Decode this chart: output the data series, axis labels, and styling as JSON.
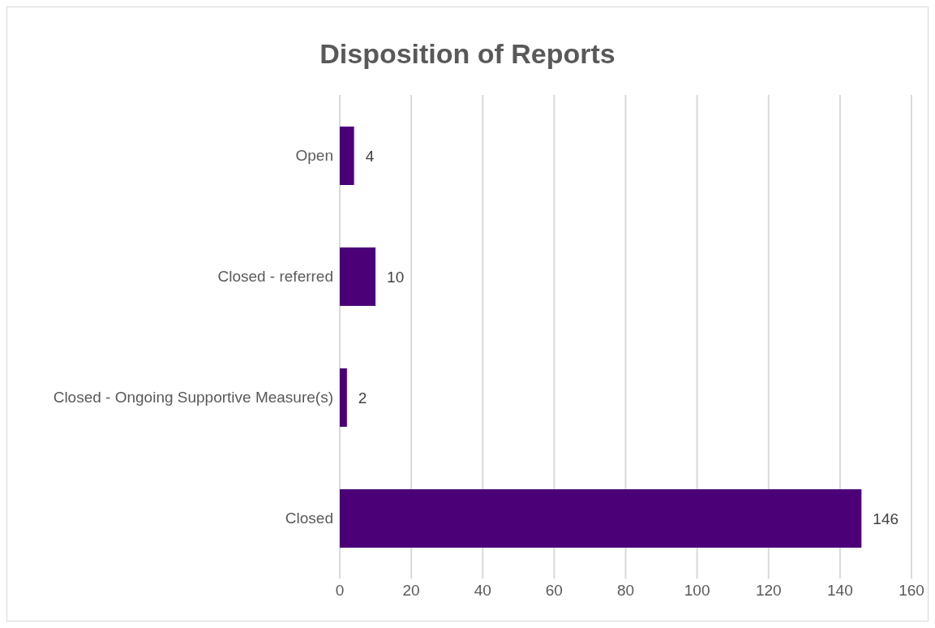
{
  "chart_data": {
    "type": "bar",
    "title": "Disposition of Reports",
    "orientation": "horizontal",
    "categories": [
      "Open",
      "Closed - referred",
      "Closed - Ongoing Supportive Measure(s)",
      "Closed"
    ],
    "values": [
      4,
      10,
      2,
      146
    ],
    "color": "#4b0078",
    "xlim": [
      0,
      160
    ],
    "xticks": [
      0,
      20,
      40,
      60,
      80,
      100,
      120,
      140,
      160
    ],
    "grid": "x",
    "data_labels": true
  }
}
